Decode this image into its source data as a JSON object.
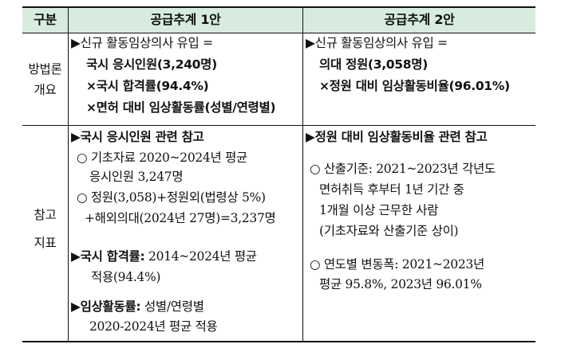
{
  "header": {
    "col0": "구분",
    "col1": "공급추계 1안",
    "col2": "공급추계 2안"
  },
  "row1": {
    "label1": "방법론",
    "label2": "개요",
    "left": {
      "l1": "▶신규 활동임상의사 유입 =",
      "l2": "국시 응시인원(3,240명)",
      "l3": "×국시 합격률(94.4%)",
      "l4": "×면허 대비 임상활동률(성별/연령별)"
    },
    "right": {
      "l1": "▶신규 활동임상의사 유입 =",
      "l2": "의대 정원(3,058명)",
      "l3": "×정원 대비 임상활동비율(96.01%)"
    }
  },
  "row2": {
    "label1": "참고",
    "label2": "지표",
    "left": {
      "h1": "▶국시 응시인원 관련 참고",
      "b1a": "○ 기초자료 2020~2024년 평균",
      "b1b": "응시인원 3,247명",
      "b2a": "○ 정원(3,058)+정원외(법령상 5%)",
      "b2b": "+해외의대(2024년 27명)=3,237명",
      "h2": "▶국시 합격률:",
      "h2t": " 2014~2024년 평균",
      "h2b": "적용(94.4%)",
      "h3": "▶임상활동률:",
      "h3t": " 성별/연령별",
      "h3b": "2020-2024년 평균 적용"
    },
    "right": {
      "h1": "▶정원 대비 임상활동비율 관련 참고",
      "b1a": "○ 산출기준: 2021~2023년 각년도",
      "b1b": "면허취득 후부터 1년 기간 중",
      "b1c": "1개월 이상 근무한 사람",
      "b1d": "(기초자료와 산출기준 상이)",
      "b2a": "○ 연도별 변동폭: 2021~2023년",
      "b2b": "평균 95.8%, 2023년 96.01%"
    }
  }
}
